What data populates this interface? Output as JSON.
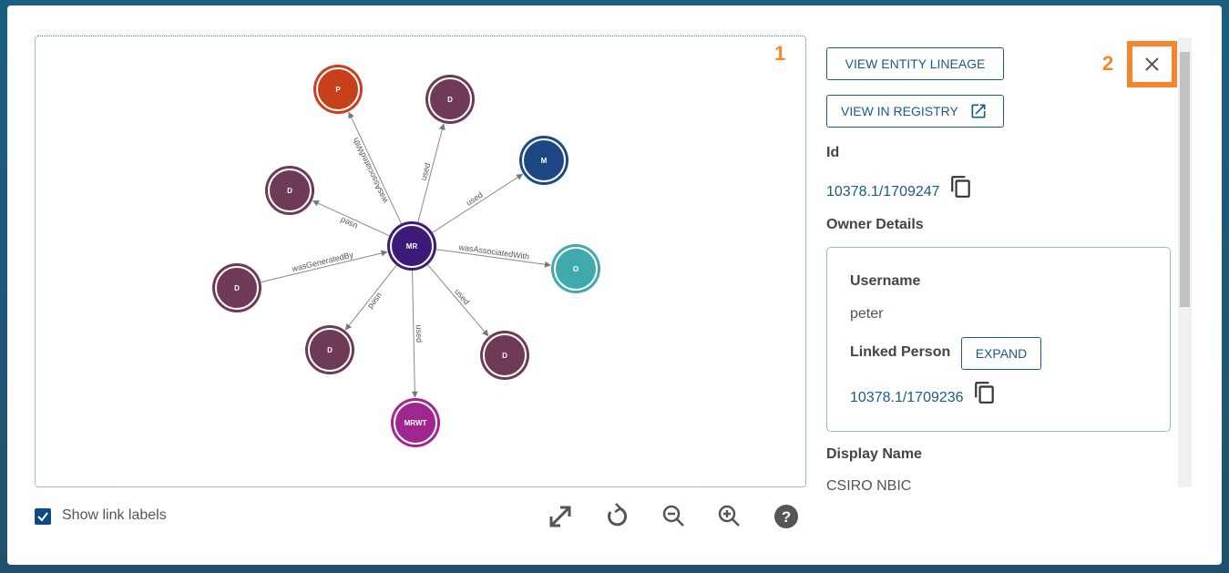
{
  "graph": {
    "nodes": [
      {
        "label": "MR",
        "color": "#3d1a78"
      },
      {
        "label": "P",
        "color": "#c8401a"
      },
      {
        "label": "D",
        "color": "#6f3a55"
      },
      {
        "label": "M",
        "color": "#1e4785"
      },
      {
        "label": "O",
        "color": "#3fa9ab"
      },
      {
        "label": "D",
        "color": "#6f3a55"
      },
      {
        "label": "MRWT",
        "color": "#a0278f"
      },
      {
        "label": "D",
        "color": "#6f3a55"
      },
      {
        "label": "D",
        "color": "#6f3a55"
      },
      {
        "label": "D",
        "color": "#6f3a55"
      }
    ],
    "links": [
      {
        "label": "wasAssociatedWith"
      },
      {
        "label": "used"
      },
      {
        "label": "used"
      },
      {
        "label": "wasAssociatedWith"
      },
      {
        "label": "used"
      },
      {
        "label": "used"
      },
      {
        "label": "used"
      },
      {
        "label": "wasGeneratedBy"
      },
      {
        "label": "used"
      }
    ]
  },
  "annotations": [
    "1",
    "2"
  ],
  "panel": {
    "view_lineage": "VIEW ENTITY LINEAGE",
    "view_registry": "VIEW IN REGISTRY",
    "id_label": "Id",
    "id_value": "10378.1/1709247",
    "owner_title": "Owner Details",
    "username_label": "Username",
    "username": "peter",
    "linked_person_label": "Linked Person",
    "expand": "EXPAND",
    "linked_person_id": "10378.1/1709236",
    "display_name_label": "Display Name",
    "display_name": "CSIRO NBIC"
  },
  "footer": {
    "show_link_labels": "Show link labels"
  }
}
